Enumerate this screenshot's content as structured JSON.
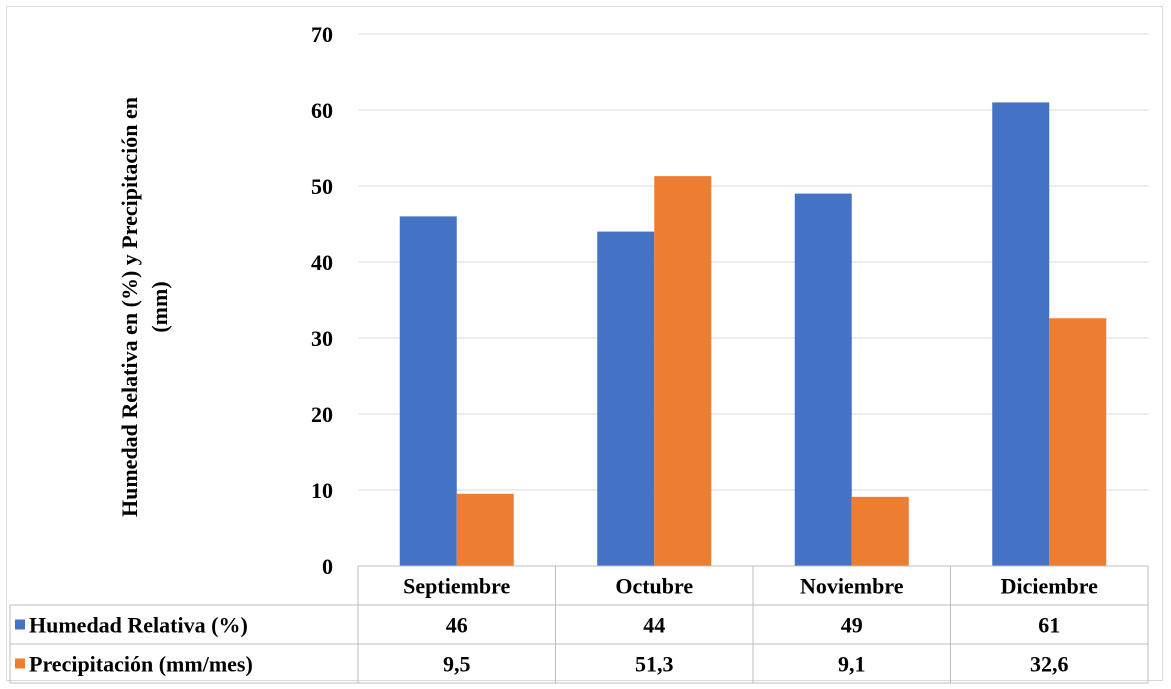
{
  "chart_data": {
    "type": "bar",
    "title": "",
    "xlabel": "",
    "ylabel": {
      "line1": "Humedad Relativa en (%) y Precipitación en",
      "line2": "(mm)"
    },
    "ylim": [
      0,
      70
    ],
    "yticks": [
      0,
      10,
      20,
      30,
      40,
      50,
      60,
      70
    ],
    "grid": true,
    "legend": "data-table",
    "categories": [
      "Septiembre",
      "Octubre",
      "Noviembre",
      "Diciembre"
    ],
    "series": [
      {
        "name": "Humedad Relativa (%)",
        "values": [
          46,
          44,
          49,
          61
        ],
        "labels": [
          "46",
          "44",
          "49",
          "61"
        ],
        "color": "#4472c4"
      },
      {
        "name": "Precipitación (mm/mes)",
        "values": [
          9.5,
          51.3,
          9.1,
          32.6
        ],
        "labels": [
          "9,5",
          "51,3",
          "9,1",
          "32,6"
        ],
        "color": "#ed7d31"
      }
    ]
  }
}
